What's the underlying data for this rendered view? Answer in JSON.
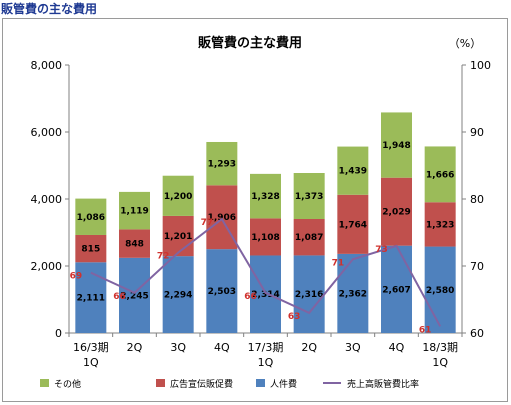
{
  "page_heading": "販管費の主な費用",
  "chart_data": {
    "type": "bar",
    "stacked": true,
    "title": "販管費の主な費用",
    "right_axis_unit": "（%）",
    "categories": [
      [
        "16/3期",
        "1Q"
      ],
      [
        "2Q"
      ],
      [
        "3Q"
      ],
      [
        "4Q"
      ],
      [
        "17/3期",
        "1Q"
      ],
      [
        "2Q"
      ],
      [
        "3Q"
      ],
      [
        "4Q"
      ],
      [
        "18/3期",
        "1Q"
      ]
    ],
    "series": [
      {
        "name": "人件費",
        "color": "#4f81bd",
        "values": [
          2111,
          2245,
          2294,
          2503,
          2314,
          2316,
          2362,
          2607,
          2580
        ]
      },
      {
        "name": "広告宣伝販促費",
        "color": "#c0504d",
        "values": [
          815,
          848,
          1201,
          1906,
          1108,
          1087,
          1764,
          2029,
          1323
        ]
      },
      {
        "name": "その他",
        "color": "#9bbb59",
        "values": [
          1086,
          1119,
          1200,
          1293,
          1328,
          1373,
          1439,
          1948,
          1666
        ]
      }
    ],
    "line_series": {
      "name": "売上高販管費比率",
      "color": "#8064a2",
      "axis": "right",
      "values": [
        69,
        66,
        72,
        77,
        66,
        63,
        71,
        73,
        61
      ]
    },
    "y_left": {
      "min": 0,
      "max": 8000,
      "ticks": [
        "0",
        "2,000",
        "4,000",
        "6,000",
        "8,000"
      ]
    },
    "y_right": {
      "min": 60,
      "max": 100,
      "ticks": [
        "60",
        "70",
        "80",
        "90",
        "100"
      ]
    },
    "legend": [
      {
        "name": "その他",
        "color": "#9bbb59",
        "kind": "box"
      },
      {
        "name": "広告宣伝販促費",
        "color": "#c0504d",
        "kind": "box"
      },
      {
        "name": "人件費",
        "color": "#4f81bd",
        "kind": "box"
      },
      {
        "name": "売上高販管費比率",
        "color": "#8064a2",
        "kind": "line"
      }
    ],
    "legend_position": "bottom",
    "grid": false
  }
}
